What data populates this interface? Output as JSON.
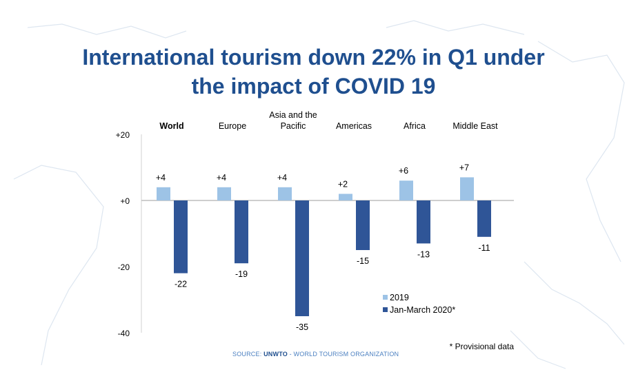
{
  "title_lines": [
    "International tourism down 22% in Q1 under",
    "the impact of COVID 19"
  ],
  "source": {
    "prefix": "SOURCE: ",
    "org": "UNWTO",
    "suffix": " - WORLD TOURISM ORGANIZATION"
  },
  "chart_data": {
    "type": "bar",
    "categories": [
      "World",
      "Europe",
      "Asia and the Pacific",
      "Americas",
      "Africa",
      "Middle East"
    ],
    "series": [
      {
        "name": "2019",
        "values": [
          4,
          4,
          4,
          2,
          6,
          7
        ],
        "labels": [
          "+4",
          "+4",
          "+4",
          "+2",
          "+6",
          "+7"
        ],
        "color": "#9dc3e6"
      },
      {
        "name": "Jan-March 2020*",
        "values": [
          -22,
          -19,
          -35,
          -15,
          -13,
          -11
        ],
        "labels": [
          "-22",
          "-19",
          "-35",
          "-15",
          "-13",
          "-11"
        ],
        "color": "#2f5597"
      }
    ],
    "yticks": [
      "+20",
      "+0",
      "-20",
      "-40"
    ],
    "ytick_values": [
      20,
      0,
      -20,
      -40
    ],
    "ylim": [
      -40,
      20
    ],
    "grid": false,
    "legend_position": "bottom-right",
    "footnote": "* Provisional data"
  }
}
